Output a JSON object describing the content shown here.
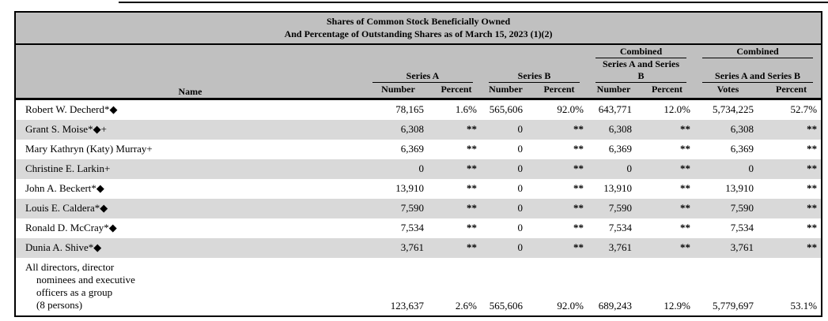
{
  "title": {
    "line1": "Shares of Common Stock Beneficially Owned",
    "line2": "And Percentage of Outstanding Shares as of March 15, 2023 (1)(2)"
  },
  "table": {
    "name_header": "Name",
    "groups": [
      {
        "top": "",
        "label": "Series A",
        "col1": "Number",
        "col2": "Percent"
      },
      {
        "top": "",
        "label": "Series B",
        "col1": "Number",
        "col2": "Percent"
      },
      {
        "top": "Combined",
        "label": "Series A and Series\nB",
        "col1": "Number",
        "col2": "Percent"
      },
      {
        "top": "Combined",
        "label": "Series A and Series B",
        "col1": "Votes",
        "col2": "Percent"
      }
    ],
    "rows": [
      {
        "name": "Robert W. Decherd*◆",
        "values": [
          "78,165",
          "1.6%",
          "565,606",
          "92.0%",
          "643,771",
          "12.0%",
          "5,734,225",
          "52.7%"
        ]
      },
      {
        "name": "Grant S. Moise*◆+",
        "values": [
          "6,308",
          "**",
          "0",
          "**",
          "6,308",
          "**",
          "6,308",
          "**"
        ]
      },
      {
        "name": "Mary Kathryn (Katy) Murray+",
        "values": [
          "6,369",
          "**",
          "0",
          "**",
          "6,369",
          "**",
          "6,369",
          "**"
        ]
      },
      {
        "name": "Christine E. Larkin+",
        "values": [
          "0",
          "**",
          "0",
          "**",
          "0",
          "**",
          "0",
          "**"
        ]
      },
      {
        "name": "John A. Beckert*◆",
        "values": [
          "13,910",
          "**",
          "0",
          "**",
          "13,910",
          "**",
          "13,910",
          "**"
        ]
      },
      {
        "name": "Louis E. Caldera*◆",
        "values": [
          "7,590",
          "**",
          "0",
          "**",
          "7,590",
          "**",
          "7,590",
          "**"
        ]
      },
      {
        "name": "Ronald D. McCray*◆",
        "values": [
          "7,534",
          "**",
          "0",
          "**",
          "7,534",
          "**",
          "7,534",
          "**"
        ]
      },
      {
        "name": "Dunia A. Shive*◆",
        "values": [
          "3,761",
          "**",
          "0",
          "**",
          "3,761",
          "**",
          "3,761",
          "**"
        ]
      },
      {
        "name": "All directors, director\nnominees and executive\nofficers as a group\n(8 persons)",
        "group": true,
        "values": [
          "123,637",
          "2.6%",
          "565,606",
          "92.0%",
          "689,243",
          "12.9%",
          "5,779,697",
          "53.1%"
        ]
      }
    ]
  }
}
